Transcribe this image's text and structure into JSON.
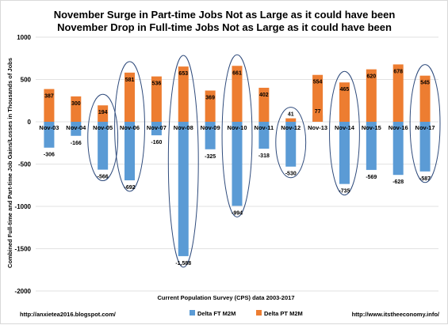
{
  "chart_data": {
    "type": "bar",
    "title": "November Surge in Part-time Jobs Not as Large as it could have been",
    "subtitle": "November Drop in Full-time Jobs Not as Large as it could have been",
    "ylabel": "Combined Full-time and Part-time Job Gains/Losses in Thousands of Jobs",
    "xlabel": "Current Population Survey (CPS) data 2003-2017",
    "ylim": [
      -2000,
      1000
    ],
    "yticks": [
      "1000",
      "500",
      "0",
      "-500",
      "-1000",
      "-1500",
      "-2000"
    ],
    "grid": true,
    "legend_position": "bottom",
    "categories": [
      "Nov-03",
      "Nov-04",
      "Nov-05",
      "Nov-06",
      "Nov-07",
      "Nov-08",
      "Nov-09",
      "Nov-10",
      "Nov-11",
      "Nov-12",
      "Nov-13",
      "Nov-14",
      "Nov-15",
      "Nov-16",
      "Nov-17"
    ],
    "series": [
      {
        "name": "Delta FT M2M",
        "color": "#5b9bd5",
        "values": [
          -306,
          -166,
          -566,
          -692,
          -160,
          -1588,
          -325,
          -994,
          -318,
          -530,
          77,
          -735,
          -569,
          -628,
          -587
        ],
        "labels": [
          "-306",
          "-166",
          "-566",
          "-692",
          "-160",
          "-1,588",
          "-325",
          "-994",
          "-318",
          "-530",
          "77",
          "-735",
          "-569",
          "-628",
          "-587"
        ]
      },
      {
        "name": "Delta PT M2M",
        "color": "#ed7d31",
        "values": [
          387,
          300,
          194,
          581,
          536,
          653,
          369,
          661,
          402,
          41,
          554,
          465,
          620,
          678,
          545
        ],
        "labels": [
          "387",
          "300",
          "194",
          "581",
          "536",
          "653",
          "369",
          "661",
          "402",
          "41",
          "554",
          "465",
          "620",
          "678",
          "545"
        ]
      }
    ],
    "highlighted_categories": [
      "Nov-05",
      "Nov-06",
      "Nov-08",
      "Nov-10",
      "Nov-12",
      "Nov-14",
      "Nov-17"
    ],
    "highlight_color": "#2f4b7c"
  },
  "footer": {
    "left_url": "http://anxietea2016.blogspot.com/",
    "right_url": "http://www.itstheeconomy.info/"
  }
}
